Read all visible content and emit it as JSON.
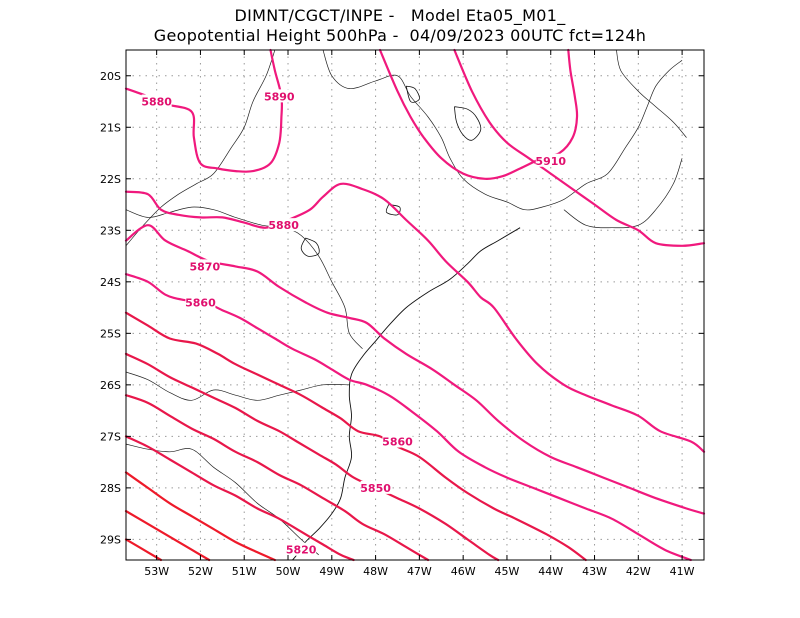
{
  "header": {
    "line1": "DIMNT/CGCT/INPE -   Model Eta05_M01_",
    "line2": "Geopotential Height 500hPa -  04/09/2023 00UTC fct=124h"
  },
  "axes": {
    "lon_range": [
      -53.7,
      -40.5
    ],
    "lat_range": [
      -29.4,
      -19.5
    ],
    "lon_ticks": [
      -53,
      -52,
      -51,
      -50,
      -49,
      -48,
      -47,
      -46,
      -45,
      -44,
      -43,
      -42,
      -41
    ],
    "lon_tick_labels": [
      "53W",
      "52W",
      "51W",
      "50W",
      "49W",
      "48W",
      "47W",
      "46W",
      "45W",
      "44W",
      "43W",
      "42W",
      "41W"
    ],
    "lat_ticks": [
      -20,
      -21,
      -22,
      -23,
      -24,
      -25,
      -26,
      -27,
      -28,
      -29
    ],
    "lat_tick_labels": [
      "20S",
      "21S",
      "22S",
      "23S",
      "24S",
      "25S",
      "26S",
      "27S",
      "28S",
      "29S"
    ],
    "grid": true
  },
  "contour_labels": [
    {
      "text": "5880",
      "lon": -53.0,
      "lat": -20.5
    },
    {
      "text": "5890",
      "lon": -50.2,
      "lat": -20.4
    },
    {
      "text": "5910",
      "lon": -44.0,
      "lat": -21.65
    },
    {
      "text": "5880",
      "lon": -50.1,
      "lat": -22.9
    },
    {
      "text": "5870",
      "lon": -51.9,
      "lat": -23.7
    },
    {
      "text": "5860",
      "lon": -52.0,
      "lat": -24.4
    },
    {
      "text": "5860",
      "lon": -47.5,
      "lat": -27.1
    },
    {
      "text": "5850",
      "lon": -48.0,
      "lat": -28.0
    },
    {
      "text": "5820",
      "lon": -49.7,
      "lat": -29.2
    }
  ],
  "contours": [
    {
      "color": "#f0197d",
      "points": [
        [
          -53.7,
          -20.25
        ],
        [
          -53.2,
          -20.4
        ],
        [
          -52.8,
          -20.55
        ],
        [
          -52.2,
          -20.7
        ],
        [
          -52.15,
          -21.2
        ],
        [
          -52.0,
          -21.7
        ],
        [
          -51.6,
          -21.8
        ],
        [
          -51.2,
          -21.85
        ],
        [
          -50.8,
          -21.85
        ],
        [
          -50.4,
          -21.7
        ],
        [
          -50.2,
          -21.3
        ],
        [
          -50.15,
          -20.8
        ],
        [
          -50.15,
          -20.4
        ],
        [
          -50.3,
          -19.9
        ],
        [
          -50.4,
          -19.5
        ]
      ]
    },
    {
      "color": "#f0197d",
      "points": [
        [
          -47.9,
          -19.5
        ],
        [
          -47.5,
          -20.3
        ],
        [
          -47.2,
          -20.8
        ],
        [
          -46.9,
          -21.2
        ],
        [
          -46.5,
          -21.6
        ],
        [
          -46.0,
          -21.9
        ],
        [
          -45.5,
          -22.0
        ],
        [
          -45.1,
          -21.95
        ],
        [
          -44.7,
          -21.8
        ],
        [
          -44.2,
          -21.6
        ],
        [
          -43.8,
          -21.5
        ],
        [
          -43.5,
          -21.2
        ],
        [
          -43.4,
          -20.8
        ],
        [
          -43.45,
          -20.4
        ],
        [
          -43.55,
          -19.9
        ],
        [
          -43.6,
          -19.5
        ]
      ]
    },
    {
      "color": "#f0197d",
      "points": [
        [
          -46.2,
          -19.5
        ],
        [
          -45.8,
          -20.3
        ],
        [
          -45.4,
          -20.9
        ],
        [
          -45.0,
          -21.3
        ],
        [
          -44.5,
          -21.6
        ],
        [
          -44.0,
          -21.9
        ],
        [
          -43.5,
          -22.2
        ],
        [
          -43.0,
          -22.5
        ],
        [
          -42.5,
          -22.8
        ],
        [
          -42.0,
          -23.0
        ],
        [
          -41.6,
          -23.25
        ],
        [
          -41.0,
          -23.3
        ],
        [
          -40.5,
          -23.25
        ]
      ]
    },
    {
      "color": "#f0197d",
      "points": [
        [
          -53.7,
          -22.25
        ],
        [
          -53.2,
          -22.3
        ],
        [
          -52.9,
          -22.6
        ],
        [
          -52.5,
          -22.7
        ],
        [
          -52.0,
          -22.75
        ],
        [
          -51.5,
          -22.75
        ],
        [
          -51.0,
          -22.85
        ],
        [
          -50.5,
          -22.95
        ],
        [
          -50.0,
          -22.8
        ],
        [
          -49.5,
          -22.6
        ],
        [
          -49.2,
          -22.35
        ],
        [
          -48.8,
          -22.1
        ],
        [
          -48.3,
          -22.2
        ],
        [
          -47.8,
          -22.4
        ],
        [
          -47.3,
          -22.8
        ],
        [
          -46.8,
          -23.2
        ],
        [
          -46.4,
          -23.6
        ],
        [
          -45.9,
          -24.0
        ],
        [
          -45.6,
          -24.3
        ],
        [
          -45.3,
          -24.5
        ],
        [
          -44.8,
          -25.1
        ],
        [
          -44.3,
          -25.6
        ],
        [
          -43.7,
          -26.0
        ],
        [
          -43.2,
          -26.2
        ],
        [
          -42.6,
          -26.4
        ],
        [
          -42.0,
          -26.6
        ],
        [
          -41.5,
          -26.9
        ],
        [
          -40.8,
          -27.1
        ],
        [
          -40.5,
          -27.3
        ]
      ]
    },
    {
      "color": "#f0197d",
      "points": [
        [
          -53.7,
          -23.2
        ],
        [
          -53.2,
          -22.9
        ],
        [
          -52.8,
          -23.2
        ],
        [
          -52.3,
          -23.4
        ],
        [
          -51.8,
          -23.6
        ],
        [
          -51.2,
          -23.7
        ],
        [
          -50.7,
          -23.8
        ],
        [
          -50.2,
          -24.1
        ],
        [
          -49.6,
          -24.4
        ],
        [
          -49.1,
          -24.6
        ],
        [
          -48.6,
          -24.7
        ],
        [
          -48.2,
          -24.8
        ],
        [
          -47.8,
          -25.1
        ],
        [
          -47.3,
          -25.4
        ],
        [
          -46.7,
          -25.7
        ],
        [
          -46.2,
          -26.0
        ],
        [
          -45.7,
          -26.3
        ],
        [
          -45.2,
          -26.7
        ],
        [
          -44.6,
          -27.1
        ],
        [
          -44.0,
          -27.4
        ],
        [
          -43.4,
          -27.6
        ],
        [
          -42.8,
          -27.8
        ],
        [
          -42.2,
          -28.0
        ],
        [
          -41.6,
          -28.2
        ],
        [
          -40.9,
          -28.4
        ],
        [
          -40.5,
          -28.5
        ]
      ]
    },
    {
      "color": "#f0197d",
      "points": [
        [
          -53.7,
          -23.85
        ],
        [
          -53.2,
          -24.0
        ],
        [
          -52.8,
          -24.25
        ],
        [
          -52.4,
          -24.35
        ],
        [
          -51.9,
          -24.4
        ],
        [
          -51.5,
          -24.55
        ],
        [
          -51.1,
          -24.7
        ],
        [
          -50.7,
          -24.9
        ],
        [
          -50.3,
          -25.1
        ],
        [
          -49.9,
          -25.3
        ],
        [
          -49.4,
          -25.5
        ],
        [
          -49.0,
          -25.7
        ],
        [
          -48.6,
          -25.9
        ],
        [
          -48.2,
          -26.0
        ],
        [
          -47.7,
          -26.2
        ],
        [
          -47.2,
          -26.5
        ],
        [
          -46.6,
          -26.9
        ],
        [
          -46.1,
          -27.3
        ],
        [
          -45.5,
          -27.6
        ],
        [
          -45.0,
          -27.8
        ],
        [
          -44.4,
          -28.0
        ],
        [
          -43.8,
          -28.2
        ],
        [
          -43.2,
          -28.4
        ],
        [
          -42.6,
          -28.6
        ],
        [
          -42.0,
          -28.9
        ],
        [
          -41.4,
          -29.2
        ],
        [
          -40.8,
          -29.4
        ]
      ]
    },
    {
      "color": "#e8174a",
      "points": [
        [
          -53.7,
          -24.6
        ],
        [
          -53.2,
          -24.85
        ],
        [
          -52.7,
          -25.1
        ],
        [
          -52.1,
          -25.2
        ],
        [
          -51.6,
          -25.4
        ],
        [
          -51.2,
          -25.6
        ],
        [
          -50.7,
          -25.8
        ],
        [
          -50.2,
          -26.0
        ],
        [
          -49.7,
          -26.2
        ],
        [
          -49.2,
          -26.45
        ],
        [
          -48.8,
          -26.65
        ],
        [
          -48.4,
          -26.9
        ],
        [
          -47.9,
          -27.0
        ],
        [
          -47.5,
          -27.2
        ],
        [
          -47.0,
          -27.4
        ],
        [
          -46.4,
          -27.8
        ],
        [
          -45.9,
          -28.1
        ],
        [
          -45.3,
          -28.4
        ],
        [
          -44.8,
          -28.6
        ],
        [
          -44.1,
          -28.9
        ],
        [
          -43.6,
          -29.15
        ],
        [
          -43.2,
          -29.4
        ]
      ]
    },
    {
      "color": "#e8174a",
      "points": [
        [
          -53.7,
          -25.4
        ],
        [
          -53.2,
          -25.6
        ],
        [
          -52.7,
          -25.85
        ],
        [
          -52.2,
          -26.05
        ],
        [
          -51.7,
          -26.25
        ],
        [
          -51.2,
          -26.45
        ],
        [
          -50.7,
          -26.7
        ],
        [
          -50.2,
          -26.9
        ],
        [
          -49.8,
          -27.1
        ],
        [
          -49.3,
          -27.35
        ],
        [
          -48.9,
          -27.55
        ],
        [
          -48.5,
          -27.8
        ],
        [
          -48.0,
          -28.0
        ],
        [
          -47.5,
          -28.2
        ],
        [
          -47.0,
          -28.4
        ],
        [
          -46.4,
          -28.7
        ],
        [
          -45.9,
          -29.0
        ],
        [
          -45.4,
          -29.3
        ],
        [
          -45.2,
          -29.4
        ]
      ]
    },
    {
      "color": "#e8174a",
      "points": [
        [
          -53.7,
          -26.2
        ],
        [
          -53.2,
          -26.35
        ],
        [
          -52.7,
          -26.6
        ],
        [
          -52.2,
          -26.85
        ],
        [
          -51.7,
          -27.05
        ],
        [
          -51.2,
          -27.3
        ],
        [
          -50.7,
          -27.5
        ],
        [
          -50.2,
          -27.75
        ],
        [
          -49.7,
          -27.95
        ],
        [
          -49.2,
          -28.2
        ],
        [
          -48.7,
          -28.45
        ],
        [
          -48.3,
          -28.7
        ],
        [
          -47.8,
          -28.9
        ],
        [
          -47.3,
          -29.15
        ],
        [
          -46.8,
          -29.4
        ]
      ]
    },
    {
      "color": "#e8174a",
      "points": [
        [
          -53.7,
          -27.0
        ],
        [
          -53.2,
          -27.2
        ],
        [
          -52.7,
          -27.45
        ],
        [
          -52.2,
          -27.7
        ],
        [
          -51.7,
          -27.95
        ],
        [
          -51.2,
          -28.15
        ],
        [
          -50.7,
          -28.4
        ],
        [
          -50.2,
          -28.6
        ],
        [
          -49.7,
          -28.85
        ],
        [
          -49.2,
          -29.1
        ],
        [
          -48.8,
          -29.3
        ],
        [
          -48.5,
          -29.4
        ]
      ]
    },
    {
      "color": "#ee1a2a",
      "points": [
        [
          -53.7,
          -27.7
        ],
        [
          -53.2,
          -28.0
        ],
        [
          -52.7,
          -28.3
        ],
        [
          -52.2,
          -28.55
        ],
        [
          -51.7,
          -28.8
        ],
        [
          -51.2,
          -29.05
        ],
        [
          -50.7,
          -29.25
        ],
        [
          -50.3,
          -29.4
        ]
      ]
    },
    {
      "color": "#ee1a2a",
      "points": [
        [
          -53.7,
          -28.45
        ],
        [
          -53.2,
          -28.7
        ],
        [
          -52.7,
          -28.95
        ],
        [
          -52.2,
          -29.2
        ],
        [
          -51.8,
          -29.4
        ]
      ]
    },
    {
      "color": "#ee1a2a",
      "points": [
        [
          -53.7,
          -29.0
        ],
        [
          -53.2,
          -29.25
        ],
        [
          -52.9,
          -29.4
        ]
      ]
    }
  ],
  "coastline": [
    [
      -44.7,
      -22.95
    ],
    [
      -45.2,
      -23.2
    ],
    [
      -45.6,
      -23.4
    ],
    [
      -45.9,
      -23.65
    ],
    [
      -46.3,
      -23.95
    ],
    [
      -46.8,
      -24.2
    ],
    [
      -47.3,
      -24.5
    ],
    [
      -47.7,
      -24.85
    ],
    [
      -48.0,
      -25.15
    ],
    [
      -48.3,
      -25.45
    ],
    [
      -48.55,
      -25.8
    ],
    [
      -48.6,
      -26.2
    ],
    [
      -48.55,
      -26.6
    ],
    [
      -48.6,
      -27.0
    ],
    [
      -48.55,
      -27.4
    ],
    [
      -48.7,
      -27.8
    ],
    [
      -48.8,
      -28.2
    ],
    [
      -49.0,
      -28.5
    ],
    [
      -49.3,
      -28.8
    ],
    [
      -49.6,
      -29.05
    ],
    [
      -49.8,
      -29.3
    ],
    [
      -49.9,
      -29.4
    ]
  ],
  "borders": [
    [
      [
        -53.7,
        -23.3
      ],
      [
        -53.3,
        -22.9
      ],
      [
        -52.9,
        -22.55
      ],
      [
        -52.5,
        -22.3
      ],
      [
        -52.1,
        -22.1
      ],
      [
        -51.7,
        -21.9
      ],
      [
        -51.3,
        -21.4
      ],
      [
        -51.0,
        -21.0
      ],
      [
        -50.8,
        -20.5
      ],
      [
        -50.5,
        -20.0
      ],
      [
        -50.3,
        -19.5
      ]
    ],
    [
      [
        -53.7,
        -22.6
      ],
      [
        -53.2,
        -22.75
      ],
      [
        -52.7,
        -22.65
      ],
      [
        -52.2,
        -22.55
      ],
      [
        -51.7,
        -22.6
      ],
      [
        -51.2,
        -22.75
      ],
      [
        -50.6,
        -22.9
      ],
      [
        -50.1,
        -22.95
      ],
      [
        -49.7,
        -23.1
      ],
      [
        -49.3,
        -23.5
      ],
      [
        -49.0,
        -24.0
      ],
      [
        -48.7,
        -24.5
      ],
      [
        -48.6,
        -25.0
      ],
      [
        -48.3,
        -25.3
      ]
    ],
    [
      [
        -53.7,
        -25.75
      ],
      [
        -53.2,
        -25.9
      ],
      [
        -52.7,
        -26.15
      ],
      [
        -52.2,
        -26.3
      ],
      [
        -51.7,
        -26.1
      ],
      [
        -51.2,
        -26.2
      ],
      [
        -50.7,
        -26.3
      ],
      [
        -50.2,
        -26.2
      ],
      [
        -49.7,
        -26.1
      ],
      [
        -49.2,
        -26.0
      ],
      [
        -48.6,
        -26.0
      ]
    ],
    [
      [
        -53.7,
        -27.15
      ],
      [
        -53.2,
        -27.25
      ],
      [
        -52.7,
        -27.3
      ],
      [
        -52.2,
        -27.25
      ],
      [
        -51.7,
        -27.6
      ],
      [
        -51.2,
        -27.9
      ],
      [
        -50.7,
        -28.3
      ],
      [
        -50.2,
        -28.6
      ],
      [
        -49.7,
        -29.0
      ],
      [
        -49.3,
        -29.3
      ]
    ],
    [
      [
        -49.2,
        -19.5
      ],
      [
        -49.0,
        -20.0
      ],
      [
        -48.6,
        -20.25
      ],
      [
        -48.0,
        -20.1
      ],
      [
        -47.5,
        -20.0
      ],
      [
        -47.2,
        -20.4
      ],
      [
        -46.8,
        -20.8
      ],
      [
        -46.5,
        -21.2
      ],
      [
        -46.3,
        -21.6
      ],
      [
        -46.0,
        -22.0
      ],
      [
        -45.5,
        -22.3
      ],
      [
        -45.0,
        -22.45
      ],
      [
        -44.6,
        -22.6
      ],
      [
        -44.2,
        -22.55
      ],
      [
        -43.7,
        -22.4
      ],
      [
        -43.2,
        -22.1
      ],
      [
        -42.7,
        -21.9
      ],
      [
        -42.3,
        -21.4
      ],
      [
        -42.0,
        -21.0
      ],
      [
        -41.8,
        -20.6
      ],
      [
        -41.6,
        -20.2
      ],
      [
        -41.3,
        -19.9
      ],
      [
        -41.0,
        -19.7
      ]
    ],
    [
      [
        -43.7,
        -22.6
      ],
      [
        -43.2,
        -22.9
      ],
      [
        -42.6,
        -22.95
      ],
      [
        -42.0,
        -22.9
      ],
      [
        -41.6,
        -22.6
      ],
      [
        -41.2,
        -22.1
      ],
      [
        -41.0,
        -21.6
      ]
    ],
    [
      [
        -42.5,
        -19.5
      ],
      [
        -42.4,
        -19.9
      ],
      [
        -42.0,
        -20.3
      ],
      [
        -41.6,
        -20.6
      ],
      [
        -41.2,
        -20.9
      ],
      [
        -40.9,
        -21.2
      ]
    ]
  ],
  "lakes": [
    [
      [
        -46.2,
        -20.6
      ],
      [
        -45.9,
        -20.65
      ],
      [
        -45.7,
        -20.8
      ],
      [
        -45.6,
        -21.05
      ],
      [
        -45.8,
        -21.25
      ],
      [
        -46.0,
        -21.15
      ],
      [
        -46.15,
        -20.9
      ]
    ],
    [
      [
        -49.6,
        -23.15
      ],
      [
        -49.35,
        -23.25
      ],
      [
        -49.3,
        -23.45
      ],
      [
        -49.55,
        -23.5
      ],
      [
        -49.7,
        -23.35
      ]
    ],
    [
      [
        -47.3,
        -20.2
      ],
      [
        -47.1,
        -20.25
      ],
      [
        -47.0,
        -20.45
      ],
      [
        -47.2,
        -20.5
      ]
    ],
    [
      [
        -47.7,
        -22.5
      ],
      [
        -47.45,
        -22.55
      ],
      [
        -47.5,
        -22.7
      ],
      [
        -47.75,
        -22.65
      ]
    ]
  ]
}
